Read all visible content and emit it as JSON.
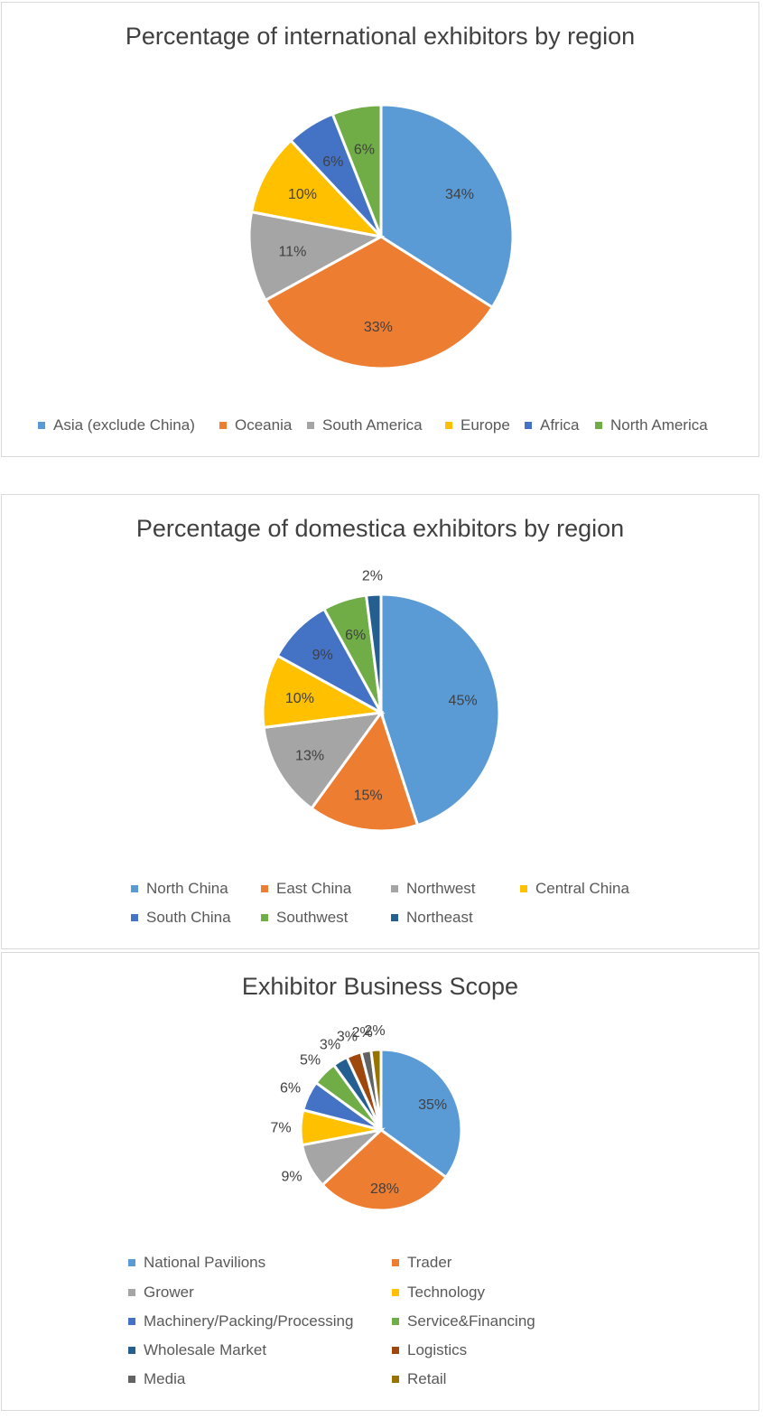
{
  "chart_data": [
    {
      "type": "pie",
      "title": "Percentage of international exhibitors by region",
      "categories": [
        "Asia (exclude China)",
        "Oceania",
        "South America",
        "Europe",
        "Africa",
        "North America"
      ],
      "values": [
        34,
        33,
        11,
        10,
        6,
        6
      ],
      "labels": [
        "34%",
        "33%",
        "11%",
        "10%",
        "6%",
        "6%"
      ],
      "colors": [
        "#5b9bd5",
        "#ed7d31",
        "#a5a5a5",
        "#ffc000",
        "#4472c4",
        "#70ad47"
      ],
      "legend_position": "bottom"
    },
    {
      "type": "pie",
      "title": "Percentage of domestica exhibitors by region",
      "categories": [
        "North China",
        "East China",
        "Northwest",
        "Central China",
        "South China",
        "Southwest",
        "Northeast"
      ],
      "values": [
        45,
        15,
        13,
        10,
        9,
        6,
        2
      ],
      "labels": [
        "45%",
        "15%",
        "13%",
        "10%",
        "9%",
        "6%",
        "2%"
      ],
      "colors": [
        "#5b9bd5",
        "#ed7d31",
        "#a5a5a5",
        "#ffc000",
        "#4472c4",
        "#70ad47",
        "#255e91"
      ],
      "legend_position": "bottom"
    },
    {
      "type": "pie",
      "title": "Exhibitor Business Scope",
      "categories": [
        "National Pavilions",
        "Trader",
        "Grower",
        "Technology",
        "Machinery/Packing/Processing",
        "Service&Financing",
        "Wholesale Market",
        "Logistics",
        "Media",
        "Retail"
      ],
      "values": [
        35,
        28,
        9,
        7,
        6,
        5,
        3,
        3,
        2,
        2
      ],
      "labels": [
        "35%",
        "28%",
        "9%",
        "7%",
        "6%",
        "5%",
        "3%",
        "3%",
        "2%",
        "2%"
      ],
      "colors": [
        "#5b9bd5",
        "#ed7d31",
        "#a5a5a5",
        "#ffc000",
        "#4472c4",
        "#70ad47",
        "#255e91",
        "#9e480e",
        "#636363",
        "#997300"
      ],
      "legend_position": "bottom"
    }
  ]
}
